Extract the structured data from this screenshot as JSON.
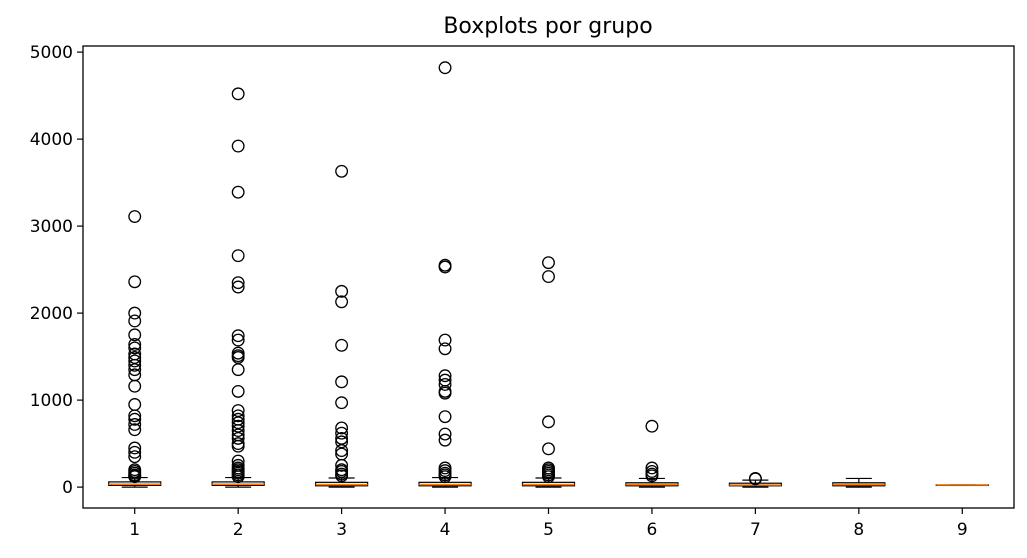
{
  "chart_data": {
    "type": "boxplot",
    "title": "Boxplots por grupo",
    "xlabel": "",
    "ylabel": "",
    "ylim": [
      -240,
      5070
    ],
    "yticks": [
      0,
      1000,
      2000,
      3000,
      4000,
      5000
    ],
    "categories": [
      "1",
      "2",
      "3",
      "4",
      "5",
      "6",
      "7",
      "8",
      "9"
    ],
    "colors": {
      "box": "#000000",
      "median": "#ff7f0e",
      "flier_edge": "#000000"
    },
    "grid": false,
    "boxes": [
      {
        "category": "1",
        "whisker_low": 0,
        "q1": 20,
        "median": 35,
        "q3": 60,
        "whisker_high": 110,
        "fliers": [
          3110,
          2360,
          2000,
          1910,
          1750,
          1640,
          1600,
          1530,
          1490,
          1450,
          1400,
          1350,
          1290,
          1160,
          950,
          820,
          780,
          720,
          660,
          450,
          400,
          350,
          200,
          180,
          160,
          140,
          130,
          120
        ]
      },
      {
        "category": "2",
        "whisker_low": 0,
        "q1": 20,
        "median": 35,
        "q3": 60,
        "whisker_high": 110,
        "fliers": [
          4520,
          3920,
          3390,
          2660,
          2350,
          2300,
          1740,
          1690,
          1540,
          1510,
          1490,
          1350,
          1100,
          880,
          820,
          780,
          740,
          700,
          650,
          600,
          560,
          500,
          470,
          300,
          250,
          220,
          200,
          180,
          160,
          140,
          120
        ]
      },
      {
        "category": "3",
        "whisker_low": 0,
        "q1": 15,
        "median": 30,
        "q3": 55,
        "whisker_high": 105,
        "fliers": [
          3630,
          2250,
          2130,
          1630,
          1210,
          970,
          680,
          620,
          560,
          520,
          420,
          380,
          250,
          200,
          180,
          150,
          130
        ]
      },
      {
        "category": "4",
        "whisker_low": 0,
        "q1": 15,
        "median": 30,
        "q3": 55,
        "whisker_high": 110,
        "fliers": [
          4820,
          2550,
          2530,
          1690,
          1590,
          1280,
          1230,
          1180,
          1100,
          1080,
          810,
          610,
          540,
          220,
          190,
          160,
          140,
          120
        ]
      },
      {
        "category": "5",
        "whisker_low": 0,
        "q1": 15,
        "median": 30,
        "q3": 55,
        "whisker_high": 105,
        "fliers": [
          2580,
          2420,
          750,
          440,
          220,
          200,
          180,
          160,
          140,
          120
        ]
      },
      {
        "category": "6",
        "whisker_low": 0,
        "q1": 15,
        "median": 30,
        "q3": 50,
        "whisker_high": 100,
        "fliers": [
          700,
          220,
          180,
          150,
          130
        ]
      },
      {
        "category": "7",
        "whisker_low": 0,
        "q1": 15,
        "median": 25,
        "q3": 45,
        "whisker_high": 80,
        "fliers": [
          100,
          95
        ]
      },
      {
        "category": "8",
        "whisker_low": 0,
        "q1": 15,
        "median": 30,
        "q3": 50,
        "whisker_high": 100,
        "fliers": []
      },
      {
        "category": "9",
        "whisker_low": 25,
        "q1": 25,
        "median": 25,
        "q3": 25,
        "whisker_high": 25,
        "fliers": []
      }
    ]
  }
}
